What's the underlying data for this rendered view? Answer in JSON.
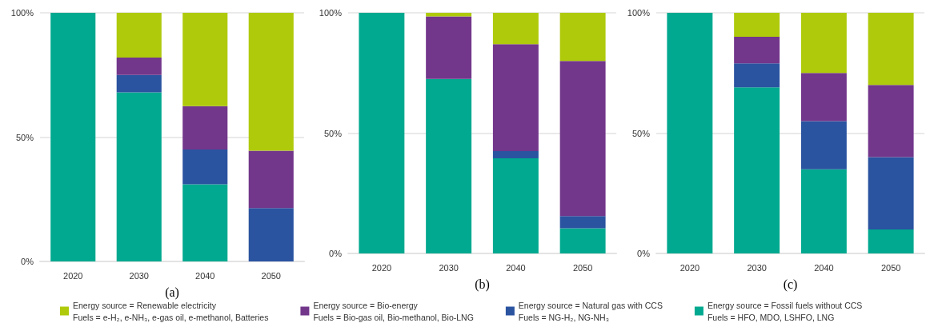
{
  "chart_data": [
    {
      "type": "bar",
      "stacked": true,
      "xlabel": "(a)",
      "categories": [
        "2020",
        "2030",
        "2040",
        "2050"
      ],
      "ylim": [
        0,
        100
      ],
      "yticks": [
        {
          "value": 0,
          "label": "0%"
        },
        {
          "value": 50,
          "label": "50%"
        },
        {
          "value": 100,
          "label": "100%"
        }
      ],
      "grid": "y",
      "legend": "bottom",
      "series": [
        {
          "name": "Energy source = Fossil fuels without CCS\nFuels = HFO, MDO, LSHFO, LNG",
          "color": "#00a98f",
          "values": [
            100,
            68,
            31,
            0
          ]
        },
        {
          "name": "Energy source = Natural gas with CCS\nFuels = NG-H₂, NG-NH₃",
          "color": "#2a53a0",
          "values": [
            0,
            7,
            14,
            21.5
          ]
        },
        {
          "name": "Energy source = Bio-energy\nFuels = Bio-gas oil, Bio-methanol, Bio-LNG",
          "color": "#72368b",
          "values": [
            0,
            7,
            17.5,
            23
          ]
        },
        {
          "name": "Energy source = Renewable electricity\nFuels = e-H₂, e-NH₃, e-gas oil, e-methanol, Batteries",
          "color": "#afca0b",
          "values": [
            0,
            18,
            37.5,
            55.5
          ]
        }
      ]
    },
    {
      "type": "bar",
      "stacked": true,
      "xlabel": "(b)",
      "categories": [
        "2020",
        "2030",
        "2040",
        "2050"
      ],
      "ylim": [
        0,
        100
      ],
      "yticks": [
        {
          "value": 0,
          "label": "0%"
        },
        {
          "value": 50,
          "label": "50%"
        },
        {
          "value": 100,
          "label": "100%"
        }
      ],
      "grid": "y",
      "series": [
        {
          "color": "#00a98f",
          "values": [
            100,
            72.5,
            39.5,
            10.5
          ]
        },
        {
          "color": "#2a53a0",
          "values": [
            0,
            0,
            3,
            5
          ]
        },
        {
          "color": "#72368b",
          "values": [
            0,
            26,
            44.5,
            64.5
          ]
        },
        {
          "color": "#afca0b",
          "values": [
            0,
            1.5,
            13,
            20
          ]
        }
      ]
    },
    {
      "type": "bar",
      "stacked": true,
      "xlabel": "(c)",
      "categories": [
        "2020",
        "2030",
        "2040",
        "2050"
      ],
      "ylim": [
        0,
        100
      ],
      "yticks": [
        {
          "value": 0,
          "label": "0%"
        },
        {
          "value": 50,
          "label": "50%"
        },
        {
          "value": 100,
          "label": "100%"
        }
      ],
      "grid": "y",
      "series": [
        {
          "color": "#00a98f",
          "values": [
            100,
            69,
            35,
            10
          ]
        },
        {
          "color": "#2a53a0",
          "values": [
            0,
            10,
            20,
            30
          ]
        },
        {
          "color": "#72368b",
          "values": [
            0,
            11,
            20,
            30
          ]
        },
        {
          "color": "#afca0b",
          "values": [
            0,
            10,
            25,
            30
          ]
        }
      ]
    }
  ]
}
